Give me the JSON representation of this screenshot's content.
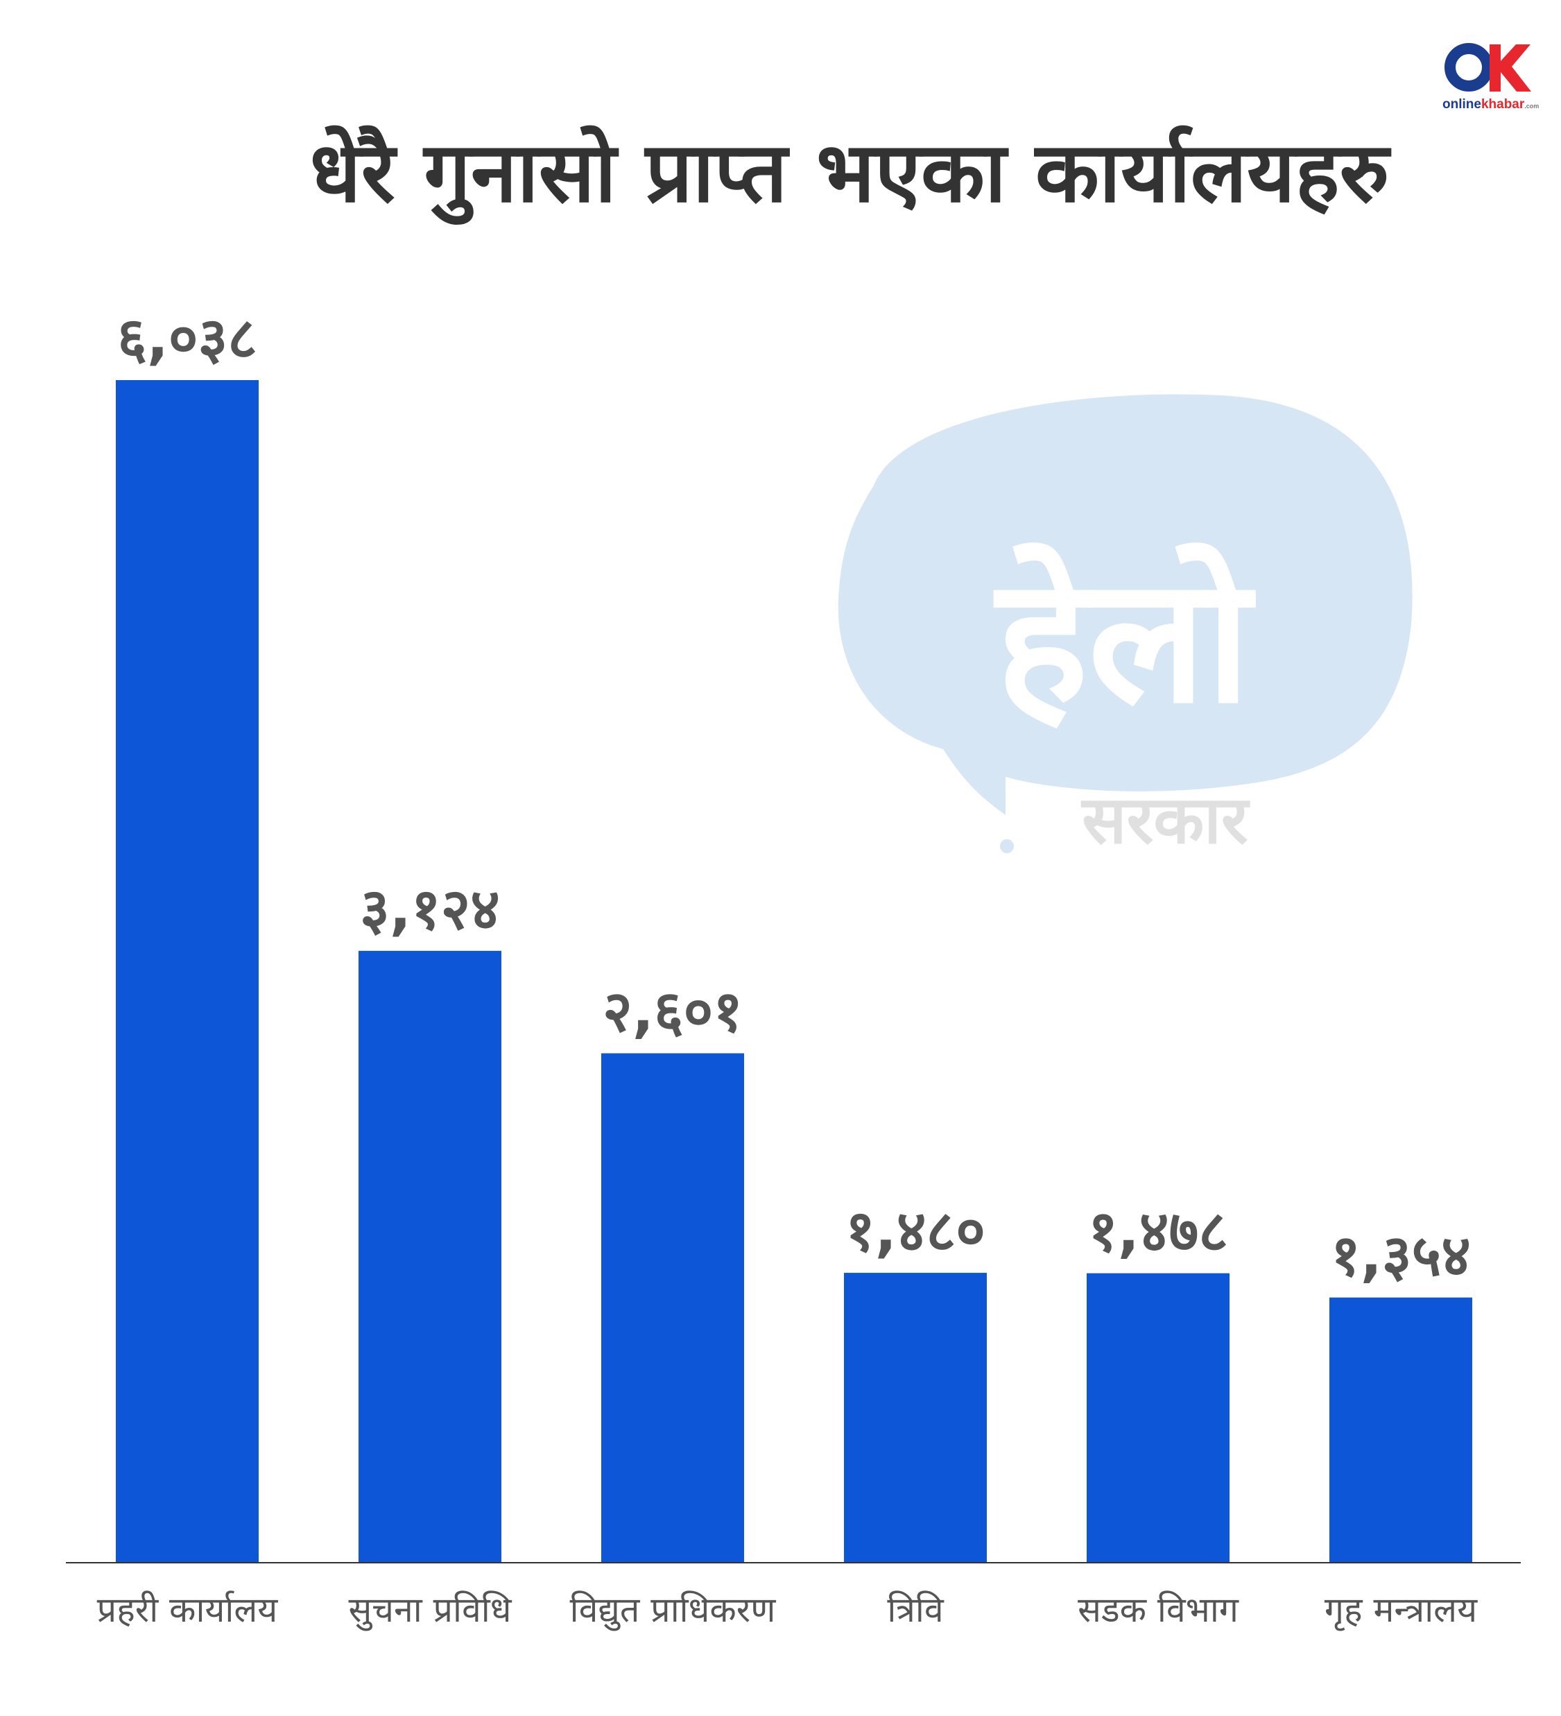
{
  "chart_data": {
    "type": "bar",
    "title": "धेरै गुनासो प्राप्त भएका कार्यालयहरु",
    "categories": [
      "प्रहरी कार्यालय",
      "सुचना प्रविधि",
      "विद्युत प्राधिकरण",
      "त्रिवि",
      "सडक विभाग",
      "गृह मन्त्रालय"
    ],
    "values": [
      6038,
      3124,
      2601,
      1480,
      1478,
      1354
    ],
    "value_labels": [
      "६,०३८",
      "३,१२४",
      "२,६०१",
      "१,४८०",
      "१,४७८",
      "१,३५४"
    ],
    "ylim": [
      0,
      6038
    ],
    "grid": false,
    "legend": "none",
    "bar_color": "#0e56d8"
  },
  "brand": {
    "logo_text": "onlinekhabar",
    "logo_suffix": "khabar",
    "logo_prefix": "online",
    "logo_domain": ".com",
    "logo_mark": "OK",
    "logo_colors": [
      "#1a3d8f",
      "#e8262d"
    ]
  },
  "watermark": {
    "main": "हेलो",
    "sub": "सरकार",
    "bubble_color": "#d6e6f4"
  }
}
